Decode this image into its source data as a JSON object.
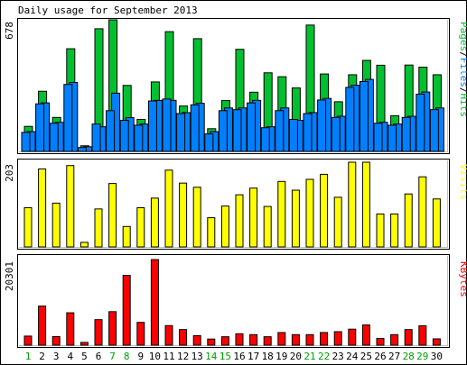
{
  "title": "Daily usage for September 2013",
  "colors": {
    "background": "#ffffff",
    "frame": "#000000",
    "pages": "#00c030",
    "files": "#0080ff",
    "hits": "#00c030",
    "visits": "#ffff00",
    "kbytes": "#ff0000",
    "weekend_day": "#00a000",
    "weekday": "#000000"
  },
  "chart_data": [
    {
      "type": "bar",
      "id": "hits-files-pages",
      "title": "Daily usage for September 2013",
      "legend_label": "Pages/Files/Hits",
      "legend_segments": [
        {
          "text": "Pages",
          "color": "#00c030"
        },
        {
          "text": "/",
          "color": "#000000"
        },
        {
          "text": "Files",
          "color": "#0080ff"
        },
        {
          "text": "/",
          "color": "#000000"
        },
        {
          "text": "Hits",
          "color": "#00c030"
        }
      ],
      "max_label": "678",
      "ylim": [
        0,
        678
      ],
      "categories": [
        "1",
        "2",
        "3",
        "4",
        "5",
        "6",
        "7",
        "8",
        "9",
        "10",
        "11",
        "12",
        "13",
        "14",
        "15",
        "16",
        "17",
        "18",
        "19",
        "20",
        "21",
        "22",
        "23",
        "24",
        "25",
        "26",
        "27",
        "28",
        "29",
        "30"
      ],
      "series": [
        {
          "name": "Hits",
          "color": "#00c030",
          "values": [
            129,
            310,
            175,
            529,
            29,
            632,
            678,
            340,
            165,
            358,
            617,
            234,
            581,
            117,
            262,
            526,
            305,
            405,
            385,
            327,
            651,
            399,
            256,
            395,
            469,
            444,
            184,
            445,
            434,
            395
          ]
        },
        {
          "name": "Files",
          "color": "#0080ff",
          "values": [
            102,
            250,
            150,
            355,
            24,
            127,
            300,
            174,
            141,
            263,
            263,
            200,
            248,
            102,
            224,
            224,
            263,
            127,
            224,
            160,
            200,
            273,
            181,
            341,
            371,
            150,
            141,
            181,
            306,
            224
          ]
        },
        {
          "name": "Pages",
          "color": "#0080ff",
          "values": [
            98,
            245,
            145,
            345,
            20,
            141,
            210,
            160,
            135,
            260,
            270,
            195,
            240,
            90,
            210,
            215,
            250,
            122,
            210,
            165,
            195,
            265,
            175,
            330,
            360,
            145,
            135,
            175,
            295,
            215
          ]
        }
      ],
      "weekend_days": [
        "1",
        "7",
        "8",
        "14",
        "15",
        "21",
        "22",
        "28",
        "29"
      ]
    },
    {
      "type": "bar",
      "id": "visits",
      "legend_label": "Visits",
      "max_label": "203",
      "ylim": [
        0,
        203
      ],
      "categories": [
        "1",
        "2",
        "3",
        "4",
        "5",
        "6",
        "7",
        "8",
        "9",
        "10",
        "11",
        "12",
        "13",
        "14",
        "15",
        "16",
        "17",
        "18",
        "19",
        "20",
        "21",
        "22",
        "23",
        "24",
        "25",
        "26",
        "27",
        "28",
        "29",
        "30"
      ],
      "series": [
        {
          "name": "Visits",
          "color": "#ffff00",
          "values": [
            94,
            187,
            105,
            195,
            11,
            91,
            152,
            49,
            94,
            117,
            184,
            153,
            143,
            70,
            98,
            125,
            141,
            97,
            157,
            136,
            162,
            174,
            119,
            203,
            203,
            79,
            79,
            127,
            168,
            115
          ]
        }
      ]
    },
    {
      "type": "bar",
      "id": "kbytes",
      "legend_label": "KBytes",
      "max_label": "20301",
      "ylim": [
        0,
        20301
      ],
      "categories": [
        "1",
        "2",
        "3",
        "4",
        "5",
        "6",
        "7",
        "8",
        "9",
        "10",
        "11",
        "12",
        "13",
        "14",
        "15",
        "16",
        "17",
        "18",
        "19",
        "20",
        "21",
        "22",
        "23",
        "24",
        "25",
        "26",
        "27",
        "28",
        "29",
        "30"
      ],
      "series": [
        {
          "name": "KBytes",
          "color": "#ff0000",
          "values": [
            2156,
            9265,
            2047,
            7682,
            655,
            6056,
            7944,
            16566,
            5406,
            20301,
            4646,
            3706,
            2250,
            1450,
            2000,
            2707,
            2500,
            2000,
            3000,
            2500,
            2500,
            3000,
            3200,
            3800,
            4800,
            1600,
            2500,
            3700,
            4600,
            1500
          ]
        }
      ]
    }
  ]
}
